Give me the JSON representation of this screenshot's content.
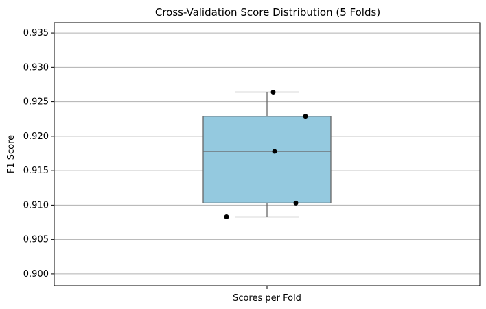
{
  "chart_data": {
    "type": "box",
    "title": "Cross-Validation Score Distribution (5 Folds)",
    "xlabel": "Scores per Fold",
    "ylabel": "F1 Score",
    "category": "",
    "ylim": [
      0.8983,
      0.9365
    ],
    "yticks": [
      0.9,
      0.905,
      0.91,
      0.915,
      0.92,
      0.925,
      0.93,
      0.935
    ],
    "ytick_labels": [
      "0.900",
      "0.905",
      "0.910",
      "0.915",
      "0.920",
      "0.925",
      "0.930",
      "0.935"
    ],
    "grid": "horizontal",
    "box": {
      "whisker_low": 0.9083,
      "q1": 0.9103,
      "median": 0.9178,
      "q3": 0.9229,
      "whisker_high": 0.9264
    },
    "points": [
      0.9264,
      0.9229,
      0.9178,
      0.9103,
      0.9083
    ],
    "colors": {
      "box_fill": "#94c9df",
      "box_edge": "#666666",
      "point": "#000000",
      "grid": "#b0b0b0"
    }
  }
}
